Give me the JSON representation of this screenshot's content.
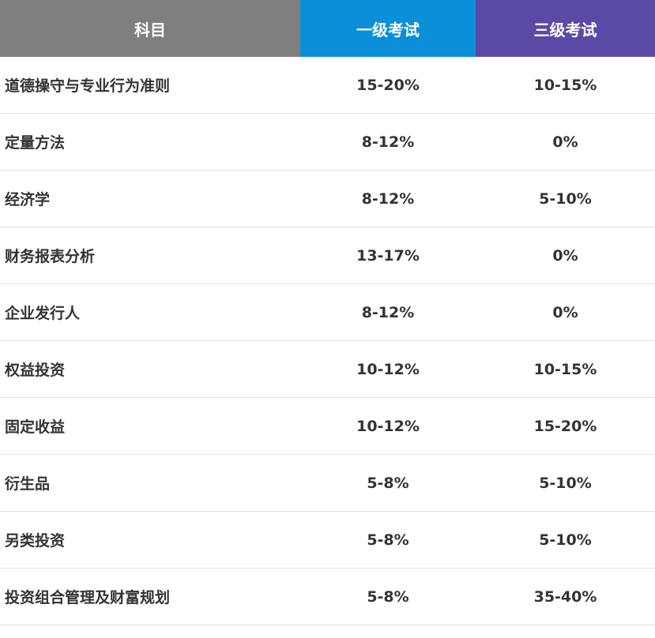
{
  "colors": {
    "header_subject_bg": "#7f7f7f",
    "header_level1_bg": "#0a8fd8",
    "header_level3_bg": "#5b4aa5"
  },
  "header": {
    "subject": "科目",
    "level1": "一级考试",
    "level3": "三级考试"
  },
  "rows": [
    {
      "subject": "道德操守与专业行为准则",
      "level1": "15-20%",
      "level3": "10-15%"
    },
    {
      "subject": "定量方法",
      "level1": "8-12%",
      "level3": "0%"
    },
    {
      "subject": "经济学",
      "level1": "8-12%",
      "level3": "5-10%"
    },
    {
      "subject": "财务报表分析",
      "level1": "13-17%",
      "level3": "0%"
    },
    {
      "subject": "企业发行人",
      "level1": "8-12%",
      "level3": "0%"
    },
    {
      "subject": "权益投资",
      "level1": "10-12%",
      "level3": "10-15%"
    },
    {
      "subject": "固定收益",
      "level1": "10-12%",
      "level3": "15-20%"
    },
    {
      "subject": "衍生品",
      "level1": "5-8%",
      "level3": "5-10%"
    },
    {
      "subject": "另类投资",
      "level1": "5-8%",
      "level3": "5-10%"
    },
    {
      "subject": "投资组合管理及财富规划",
      "level1": "5-8%",
      "level3": "35-40%"
    }
  ]
}
